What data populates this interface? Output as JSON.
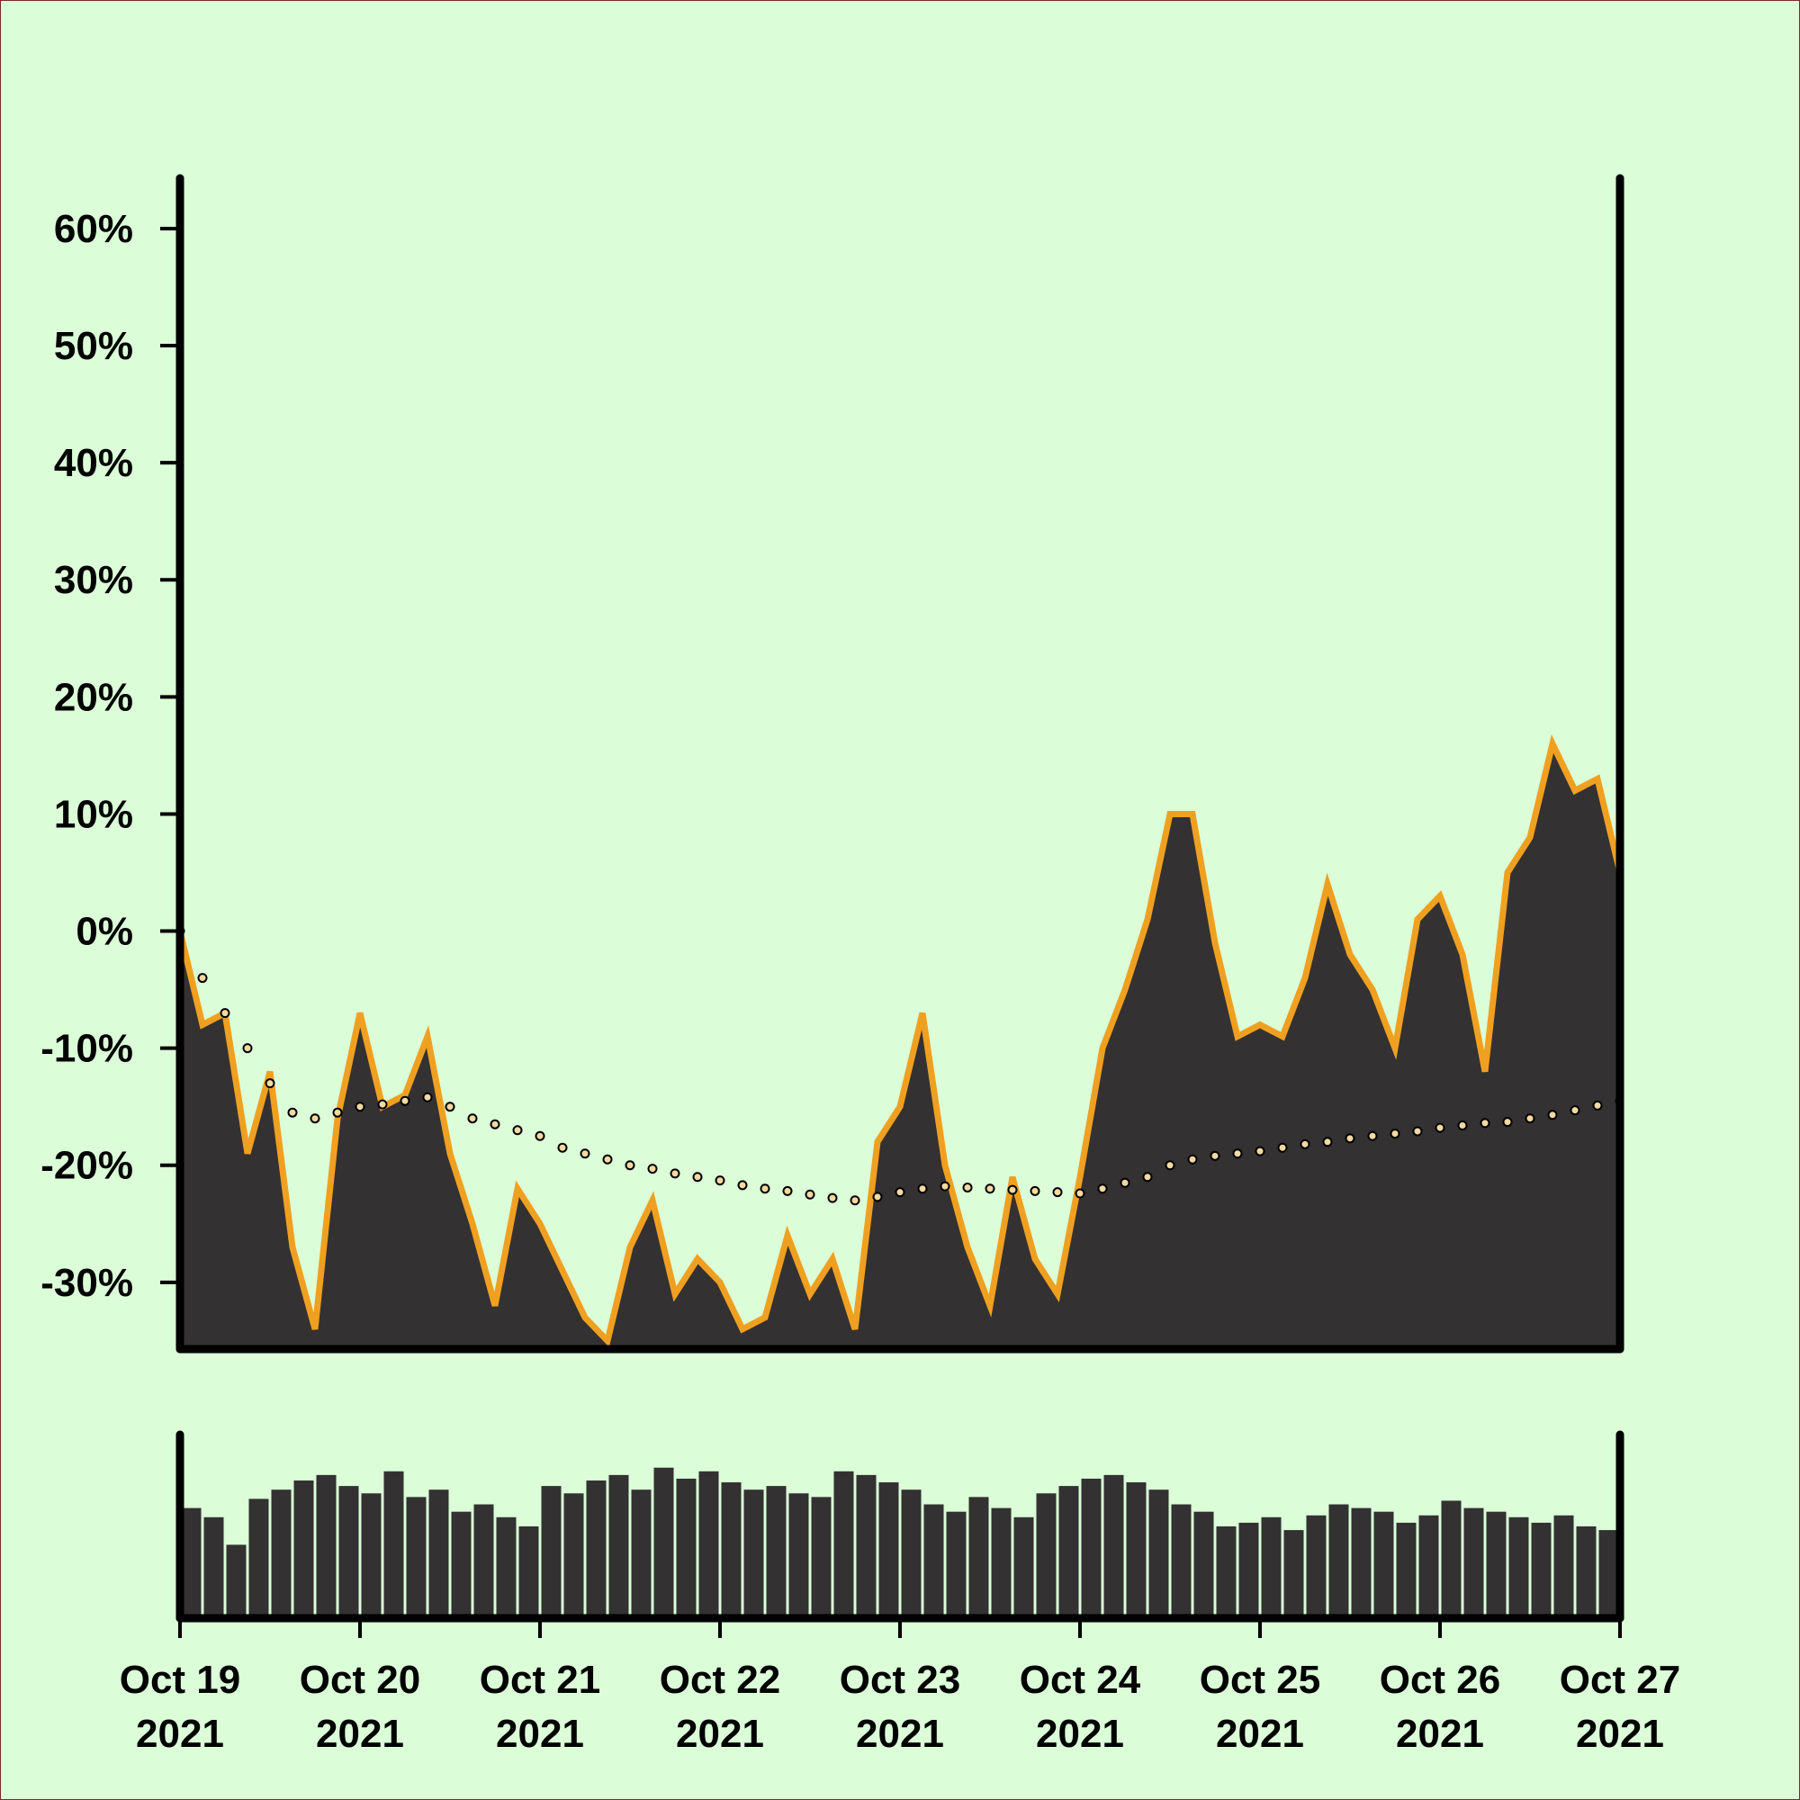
{
  "chart_data": [
    {
      "type": "area",
      "x": [
        0,
        0.125,
        0.25,
        0.375,
        0.5,
        0.625,
        0.75,
        0.875,
        1,
        1.125,
        1.25,
        1.375,
        1.5,
        1.625,
        1.75,
        1.875,
        2,
        2.125,
        2.25,
        2.375,
        2.5,
        2.625,
        2.75,
        2.875,
        3,
        3.125,
        3.25,
        3.375,
        3.5,
        3.625,
        3.75,
        3.875,
        4,
        4.125,
        4.25,
        4.375,
        4.5,
        4.625,
        4.75,
        4.875,
        5,
        5.125,
        5.25,
        5.375,
        5.5,
        5.625,
        5.75,
        5.875,
        6,
        6.125,
        6.25,
        6.375,
        6.5,
        6.625,
        6.75,
        6.875,
        7,
        7.125,
        7.25,
        7.375,
        7.5,
        7.625,
        7.75,
        7.875,
        8
      ],
      "series": [
        {
          "color": "#333132",
          "line_color": "#f0a020",
          "values": [
            0,
            -8,
            -7,
            -19,
            -12,
            -27,
            -34,
            -16,
            -7,
            -15,
            -14,
            -9,
            -19,
            -25,
            -32,
            -22,
            -25,
            -29,
            -33,
            -35,
            -27,
            -23,
            -31,
            -28,
            -30,
            -34,
            -33,
            -26,
            -31,
            -28,
            -34,
            -18,
            -15,
            -7,
            -20,
            -27,
            -32,
            -21,
            -28,
            -31,
            -21,
            -10,
            -5,
            1,
            10,
            10,
            -1,
            -9,
            -8,
            -9,
            -4,
            4,
            -2,
            -5,
            -10,
            1,
            3,
            -2,
            -12,
            5,
            8,
            16,
            12,
            13,
            5
          ]
        },
        {
          "color": "#f5d9a0",
          "style": "dotted",
          "values": [
            0,
            -4,
            -7,
            -10,
            -13,
            -15.5,
            -16,
            -15.5,
            -15,
            -14.8,
            -14.5,
            -14.2,
            -15,
            -16,
            -16.5,
            -17,
            -17.5,
            -18.5,
            -19,
            -19.5,
            -20,
            -20.3,
            -20.7,
            -21,
            -21.3,
            -21.7,
            -22,
            -22.2,
            -22.5,
            -22.8,
            -23,
            -22.7,
            -22.3,
            -22,
            -21.8,
            -21.9,
            -22,
            -22.1,
            -22.2,
            -22.3,
            -22.4,
            -22,
            -21.5,
            -21,
            -20,
            -19.5,
            -19.2,
            -19,
            -18.8,
            -18.5,
            -18.2,
            -18,
            -17.7,
            -17.5,
            -17.3,
            -17.1,
            -16.8,
            -16.6,
            -16.4,
            -16.3,
            -16,
            -15.7,
            -15.3,
            -14.9,
            -14.5
          ]
        }
      ],
      "xlim": [
        0,
        8
      ],
      "ylim": [
        -35.7,
        64.3
      ],
      "yticks": [
        {
          "value": -30,
          "label": "-30%"
        },
        {
          "value": -20,
          "label": "-20%"
        },
        {
          "value": -10,
          "label": "-10%"
        },
        {
          "value": 0,
          "label": "0%"
        },
        {
          "value": 10,
          "label": "10%"
        },
        {
          "value": 20,
          "label": "20%"
        },
        {
          "value": 30,
          "label": "30%"
        },
        {
          "value": 40,
          "label": "40%"
        },
        {
          "value": 50,
          "label": "50%"
        },
        {
          "value": 60,
          "label": "60%"
        }
      ]
    },
    {
      "type": "bar",
      "color": "#333132",
      "x": [
        0,
        0.125,
        0.25,
        0.375,
        0.5,
        0.625,
        0.75,
        0.875,
        1,
        1.125,
        1.25,
        1.375,
        1.5,
        1.625,
        1.75,
        1.875,
        2,
        2.125,
        2.25,
        2.375,
        2.5,
        2.625,
        2.75,
        2.875,
        3,
        3.125,
        3.25,
        3.375,
        3.5,
        3.625,
        3.75,
        3.875,
        4,
        4.125,
        4.25,
        4.375,
        4.5,
        4.625,
        4.75,
        4.875,
        5,
        5.125,
        5.25,
        5.375,
        5.5,
        5.625,
        5.75,
        5.875,
        6,
        6.125,
        6.25,
        6.375,
        6.5,
        6.625,
        6.75,
        6.875,
        7,
        7.125,
        7.25,
        7.375,
        7.5,
        7.625,
        7.75,
        7.875
      ],
      "values": [
        60,
        55,
        40,
        65,
        70,
        75,
        78,
        72,
        68,
        80,
        66,
        70,
        58,
        62,
        55,
        50,
        72,
        68,
        75,
        78,
        70,
        82,
        76,
        80,
        74,
        70,
        72,
        68,
        66,
        80,
        78,
        74,
        70,
        62,
        58,
        66,
        60,
        55,
        68,
        72,
        76,
        78,
        74,
        70,
        62,
        58,
        50,
        52,
        55,
        48,
        56,
        62,
        60,
        58,
        52,
        56,
        64,
        60,
        58,
        55,
        52,
        56,
        50,
        48
      ],
      "xlim": [
        0,
        8
      ],
      "ylim": [
        0,
        100
      ],
      "xticks": [
        {
          "value": 0,
          "label": [
            "Oct 19",
            "2021"
          ]
        },
        {
          "value": 1,
          "label": [
            "Oct 20",
            "2021"
          ]
        },
        {
          "value": 2,
          "label": [
            "Oct 21",
            "2021"
          ]
        },
        {
          "value": 3,
          "label": [
            "Oct 22",
            "2021"
          ]
        },
        {
          "value": 4,
          "label": [
            "Oct 23",
            "2021"
          ]
        },
        {
          "value": 5,
          "label": [
            "Oct 24",
            "2021"
          ]
        },
        {
          "value": 6,
          "label": [
            "Oct 25",
            "2021"
          ]
        },
        {
          "value": 7,
          "label": [
            "Oct 26",
            "2021"
          ]
        },
        {
          "value": 8,
          "label": [
            "Oct 27",
            "2021"
          ]
        }
      ]
    }
  ]
}
